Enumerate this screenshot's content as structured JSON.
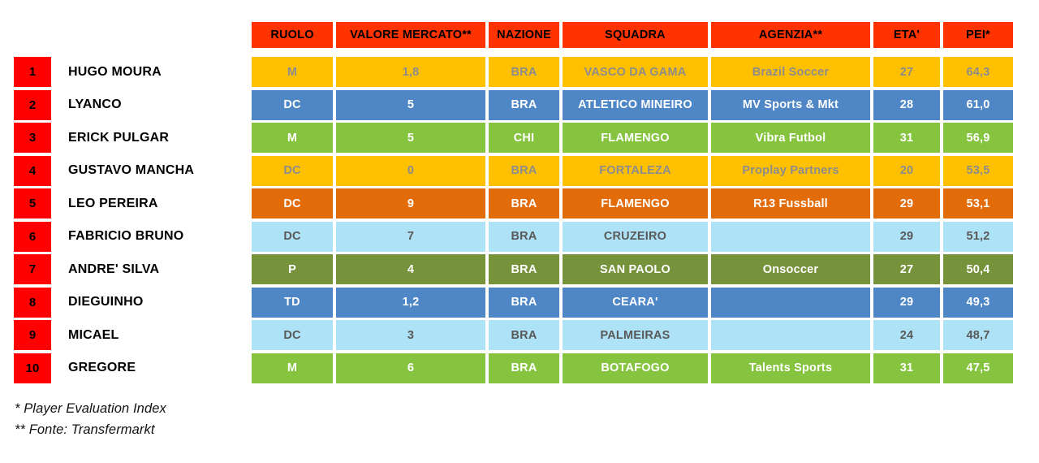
{
  "chart_data": {
    "type": "table",
    "columns": [
      "RUOLO",
      "VALORE MERCATO**",
      "NAZIONE",
      "SQUADRA",
      "AGENZIA**",
      "ETA'",
      "PEI*"
    ],
    "rows": [
      {
        "rank": "1",
        "player": "HUGO MOURA",
        "ruolo": "M",
        "valore": "1,8",
        "nazione": "BRA",
        "squadra": "VASCO DA GAMA",
        "agenzia": "Brazil Soccer",
        "eta": "27",
        "pei": "64,3",
        "theme": "gold"
      },
      {
        "rank": "2",
        "player": "LYANCO",
        "ruolo": "DC",
        "valore": "5",
        "nazione": "BRA",
        "squadra": "ATLETICO MINEIRO",
        "agenzia": "MV Sports & Mkt",
        "eta": "28",
        "pei": "61,0",
        "theme": "blue"
      },
      {
        "rank": "3",
        "player": "ERICK PULGAR",
        "ruolo": "M",
        "valore": "5",
        "nazione": "CHI",
        "squadra": "FLAMENGO",
        "agenzia": "Vibra Futbol",
        "eta": "31",
        "pei": "56,9",
        "theme": "green"
      },
      {
        "rank": "4",
        "player": "GUSTAVO MANCHA",
        "ruolo": "DC",
        "valore": "0",
        "nazione": "BRA",
        "squadra": "FORTALEZA",
        "agenzia": "Proplay Partners",
        "eta": "20",
        "pei": "53,5",
        "theme": "gold"
      },
      {
        "rank": "5",
        "player": "LEO PEREIRA",
        "ruolo": "DC",
        "valore": "9",
        "nazione": "BRA",
        "squadra": "FLAMENGO",
        "agenzia": "R13 Fussball",
        "eta": "29",
        "pei": "53,1",
        "theme": "dark_orange"
      },
      {
        "rank": "6",
        "player": "FABRICIO BRUNO",
        "ruolo": "DC",
        "valore": "7",
        "nazione": "BRA",
        "squadra": "CRUZEIRO",
        "agenzia": "",
        "eta": "29",
        "pei": "51,2",
        "theme": "light_blue"
      },
      {
        "rank": "7",
        "player": "ANDRE' SILVA",
        "ruolo": "P",
        "valore": "4",
        "nazione": "BRA",
        "squadra": "SAN PAOLO",
        "agenzia": "Onsoccer",
        "eta": "27",
        "pei": "50,4",
        "theme": "olive"
      },
      {
        "rank": "8",
        "player": "DIEGUINHO",
        "ruolo": "TD",
        "valore": "1,2",
        "nazione": "BRA",
        "squadra": "CEARA'",
        "agenzia": "",
        "eta": "29",
        "pei": "49,3",
        "theme": "blue"
      },
      {
        "rank": "9",
        "player": "MICAEL",
        "ruolo": "DC",
        "valore": "3",
        "nazione": "BRA",
        "squadra": "PALMEIRAS",
        "agenzia": "",
        "eta": "24",
        "pei": "48,7",
        "theme": "light_blue"
      },
      {
        "rank": "10",
        "player": "GREGORE",
        "ruolo": "M",
        "valore": "6",
        "nazione": "BRA",
        "squadra": "BOTAFOGO",
        "agenzia": "Talents Sports",
        "eta": "31",
        "pei": "47,5",
        "theme": "green"
      }
    ],
    "footnotes": [
      "* Player Evaluation Index",
      "** Fonte: Transfermarkt"
    ]
  },
  "colors": {
    "header_bg": "#FF3300",
    "header_text": "#000000",
    "rank_bg": "#FE0000",
    "rank_text": "#000000",
    "name_text": "#000000",
    "themes": {
      "gold": {
        "bg": "#FFC000",
        "text": "#8C8C8C"
      },
      "blue": {
        "bg": "#4E86C6",
        "text": "#FFFFFF"
      },
      "green": {
        "bg": "#86C440",
        "text": "#FFFFFF"
      },
      "dark_orange": {
        "bg": "#E36C0A",
        "text": "#FFFFFF"
      },
      "light_blue": {
        "bg": "#AEE2F7",
        "text": "#595959"
      },
      "olive": {
        "bg": "#76933C",
        "text": "#FFFFFF"
      }
    }
  }
}
